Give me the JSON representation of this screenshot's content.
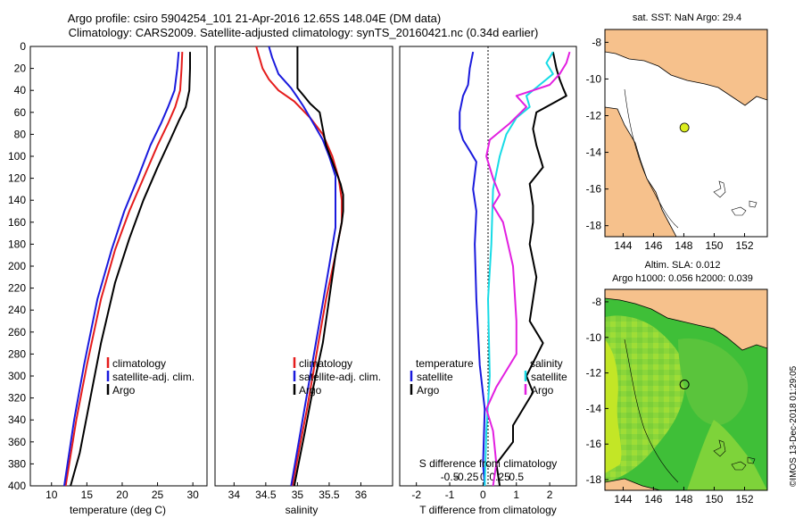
{
  "titles": {
    "line1": "Argo profile: csiro 5904254_101 21-Apr-2016 12.65S 148.04E (DM data)",
    "line2": "Climatology: CARS2009. Satellite-adjusted climatology: synTS_20160421.nc (0.34d earlier)"
  },
  "colors": {
    "climatology": "#e51c1c",
    "satellite": "#1a1add",
    "argo": "#000000",
    "salinity_satellite": "#16dbe6",
    "salinity_argo": "#e21fe0",
    "land": "#f6c18c",
    "sla_high": "#ccee1e",
    "sla_low": "#16b230"
  },
  "depth_axis": {
    "range": [
      0,
      400
    ],
    "ticks": [
      "0",
      "20",
      "40",
      "60",
      "80",
      "100",
      "120",
      "140",
      "160",
      "180",
      "200",
      "220",
      "240",
      "260",
      "280",
      "300",
      "320",
      "340",
      "360",
      "380",
      "400"
    ]
  },
  "chart_data": [
    {
      "id": "temperature",
      "type": "line",
      "xlabel": "temperature (deg C)",
      "ylabel": "",
      "xlim": [
        7,
        32
      ],
      "ylim": [
        0,
        400
      ],
      "y_inverted": true,
      "xticks": [
        "10",
        "15",
        "20",
        "25",
        "30"
      ],
      "series": [
        {
          "name": "climatology",
          "color": "climatology",
          "points": [
            [
              28.5,
              5
            ],
            [
              28.4,
              20
            ],
            [
              28.2,
              40
            ],
            [
              27.5,
              55
            ],
            [
              26.5,
              70
            ],
            [
              25,
              90
            ],
            [
              23,
              120
            ],
            [
              21,
              150
            ],
            [
              19,
              185
            ],
            [
              17,
              230
            ],
            [
              15,
              290
            ],
            [
              13.5,
              340
            ],
            [
              12,
              400
            ]
          ]
        },
        {
          "name": "satellite-adj. clim.",
          "color": "satellite",
          "points": [
            [
              28,
              5
            ],
            [
              27.8,
              20
            ],
            [
              27.4,
              40
            ],
            [
              26.5,
              55
            ],
            [
              25.5,
              70
            ],
            [
              24,
              90
            ],
            [
              22.2,
              120
            ],
            [
              20.3,
              150
            ],
            [
              18.5,
              185
            ],
            [
              16.5,
              230
            ],
            [
              14.6,
              290
            ],
            [
              13.2,
              340
            ],
            [
              11.8,
              400
            ]
          ]
        },
        {
          "name": "Argo",
          "color": "argo",
          "points": [
            [
              29.6,
              5
            ],
            [
              29.6,
              20
            ],
            [
              29.5,
              40
            ],
            [
              29,
              55
            ],
            [
              28,
              68
            ],
            [
              26.8,
              85
            ],
            [
              25,
              110
            ],
            [
              23,
              140
            ],
            [
              21,
              175
            ],
            [
              19,
              215
            ],
            [
              17,
              270
            ],
            [
              15.5,
              320
            ],
            [
              14,
              370
            ],
            [
              12.7,
              400
            ]
          ]
        }
      ]
    },
    {
      "id": "salinity",
      "type": "line",
      "xlabel": "salinity",
      "ylabel": "",
      "xlim": [
        33.7,
        36.5
      ],
      "ylim": [
        0,
        400
      ],
      "y_inverted": true,
      "xticks": [
        "34",
        "34.5",
        "35",
        "35.5",
        "36"
      ],
      "series": [
        {
          "name": "climatology",
          "color": "climatology",
          "points": [
            [
              34.35,
              0
            ],
            [
              34.4,
              10
            ],
            [
              34.45,
              20
            ],
            [
              34.55,
              30
            ],
            [
              34.7,
              40
            ],
            [
              34.95,
              50
            ],
            [
              35.2,
              65
            ],
            [
              35.4,
              80
            ],
            [
              35.55,
              100
            ],
            [
              35.65,
              120
            ],
            [
              35.7,
              140
            ],
            [
              35.7,
              160
            ],
            [
              35.6,
              190
            ],
            [
              35.45,
              230
            ],
            [
              35.3,
              280
            ],
            [
              35.15,
              330
            ],
            [
              35.05,
              360
            ],
            [
              34.92,
              400
            ]
          ]
        },
        {
          "name": "satellite-adj. clim.",
          "color": "satellite",
          "points": [
            [
              34.55,
              0
            ],
            [
              34.6,
              10
            ],
            [
              34.7,
              25
            ],
            [
              34.9,
              38
            ],
            [
              35.02,
              48
            ],
            [
              35.1,
              55
            ],
            [
              35.25,
              70
            ],
            [
              35.4,
              85
            ],
            [
              35.5,
              100
            ],
            [
              35.6,
              118
            ],
            [
              35.6,
              165
            ],
            [
              35.5,
              200
            ],
            [
              35.35,
              250
            ],
            [
              35.2,
              300
            ],
            [
              35.08,
              340
            ],
            [
              34.9,
              400
            ]
          ]
        },
        {
          "name": "Argo",
          "color": "argo",
          "points": [
            [
              35,
              0
            ],
            [
              35,
              20
            ],
            [
              35,
              38
            ],
            [
              35.1,
              45
            ],
            [
              35.2,
              52
            ],
            [
              35.35,
              60
            ],
            [
              35.4,
              75
            ],
            [
              35.45,
              90
            ],
            [
              35.55,
              105
            ],
            [
              35.68,
              125
            ],
            [
              35.72,
              135
            ],
            [
              35.72,
              150
            ],
            [
              35.7,
              160
            ],
            [
              35.6,
              190
            ],
            [
              35.5,
              230
            ],
            [
              35.4,
              270
            ],
            [
              35.25,
              310
            ],
            [
              35.12,
              350
            ],
            [
              35,
              385
            ],
            [
              34.95,
              400
            ]
          ]
        }
      ]
    },
    {
      "id": "differences",
      "type": "line",
      "xlabel": "T difference from climatology",
      "ylabel": "",
      "xlim": [
        -2.5,
        2.8
      ],
      "ylim": [
        0,
        400
      ],
      "y_inverted": true,
      "xticks": [
        "-2",
        "-1",
        "0",
        "1",
        "2"
      ],
      "top_axis_title": "S difference from climatology",
      "top_ticks": [
        "-0.5",
        "-0.25",
        "0",
        "0.25",
        "0.5"
      ],
      "series": [
        {
          "name": "temperature satellite",
          "color": "satellite",
          "points": [
            [
              -0.3,
              5
            ],
            [
              -0.4,
              20
            ],
            [
              -0.45,
              35
            ],
            [
              -0.6,
              45
            ],
            [
              -0.7,
              60
            ],
            [
              -0.7,
              75
            ],
            [
              -0.6,
              85
            ],
            [
              -0.4,
              95
            ],
            [
              -0.2,
              105
            ],
            [
              -0.3,
              130
            ],
            [
              -0.2,
              150
            ],
            [
              -0.25,
              180
            ],
            [
              -0.2,
              230
            ],
            [
              -0.1,
              290
            ],
            [
              0.05,
              330
            ],
            [
              0,
              380
            ],
            [
              0.05,
              400
            ]
          ]
        },
        {
          "name": "temperature Argo",
          "color": "argo",
          "points": [
            [
              2.1,
              5
            ],
            [
              2.2,
              20
            ],
            [
              2.3,
              30
            ],
            [
              2.4,
              38
            ],
            [
              2.5,
              45
            ],
            [
              2.2,
              50
            ],
            [
              1.6,
              60
            ],
            [
              1.5,
              75
            ],
            [
              1.6,
              90
            ],
            [
              1.8,
              110
            ],
            [
              1.4,
              125
            ],
            [
              1.5,
              145
            ],
            [
              1.5,
              160
            ],
            [
              1.4,
              180
            ],
            [
              1.6,
              210
            ],
            [
              1.4,
              250
            ],
            [
              1.8,
              270
            ],
            [
              1.3,
              300
            ],
            [
              1.5,
              315
            ],
            [
              1.2,
              330
            ],
            [
              0.9,
              345
            ],
            [
              0.9,
              360
            ],
            [
              0.4,
              380
            ],
            [
              0.5,
              400
            ]
          ]
        },
        {
          "name": "salinity satellite",
          "color": "salinity_satellite",
          "points": [
            [
              2.1,
              5
            ],
            [
              1.9,
              15
            ],
            [
              2.1,
              25
            ],
            [
              1.7,
              35
            ],
            [
              1.3,
              45
            ],
            [
              1.4,
              55
            ],
            [
              1.0,
              65
            ],
            [
              0.7,
              80
            ],
            [
              0.5,
              100
            ],
            [
              0.3,
              130
            ],
            [
              0.25,
              180
            ],
            [
              0.15,
              230
            ],
            [
              0.2,
              300
            ],
            [
              0.1,
              350
            ],
            [
              0.05,
              400
            ]
          ]
        },
        {
          "name": "salinity Argo",
          "color": "salinity_argo",
          "points": [
            [
              2.6,
              5
            ],
            [
              2.5,
              15
            ],
            [
              2.3,
              25
            ],
            [
              2.0,
              35
            ],
            [
              1.5,
              40
            ],
            [
              1.0,
              45
            ],
            [
              1.3,
              55
            ],
            [
              0.8,
              70
            ],
            [
              0.2,
              85
            ],
            [
              0.1,
              100
            ],
            [
              0.3,
              120
            ],
            [
              0.5,
              135
            ],
            [
              0.3,
              145
            ],
            [
              0.6,
              160
            ],
            [
              0.9,
              200
            ],
            [
              1.0,
              250
            ],
            [
              1.0,
              280
            ],
            [
              0.6,
              300
            ],
            [
              0.4,
              310
            ],
            [
              0.1,
              330
            ],
            [
              0.3,
              350
            ],
            [
              0.4,
              380
            ],
            [
              0.3,
              400
            ]
          ]
        }
      ]
    }
  ],
  "legends": {
    "temperature": [
      "climatology",
      "satellite-adj. clim.",
      "Argo"
    ],
    "salinity": [
      "climatology",
      "satellite-adj. clim.",
      "Argo"
    ],
    "diff_temperature_title": "temperature",
    "diff_salinity_title": "salinity",
    "diff_temperature": [
      "satellite",
      "Argo"
    ],
    "diff_salinity": [
      "satellite",
      "Argo"
    ]
  },
  "maps": {
    "sst_title": "sat. SST: NaN Argo: 29.4",
    "sla_title1": "Altim. SLA: 0.012",
    "sla_title2": "Argo h1000: 0.056 h2000: 0.039",
    "xticks": [
      "144",
      "146",
      "148",
      "150",
      "152"
    ],
    "yticks": [
      "-8",
      "-10",
      "-12",
      "-14",
      "-16",
      "-18"
    ],
    "xlim": [
      142.8,
      153.5
    ],
    "ylim": [
      -18.6,
      -7.3
    ],
    "argo_position": {
      "lon": 148.04,
      "lat": -12.65
    },
    "sst_marker_color": "#dcee1e"
  },
  "credit": "©IMOS 13-Dec-2018 01:29:05"
}
